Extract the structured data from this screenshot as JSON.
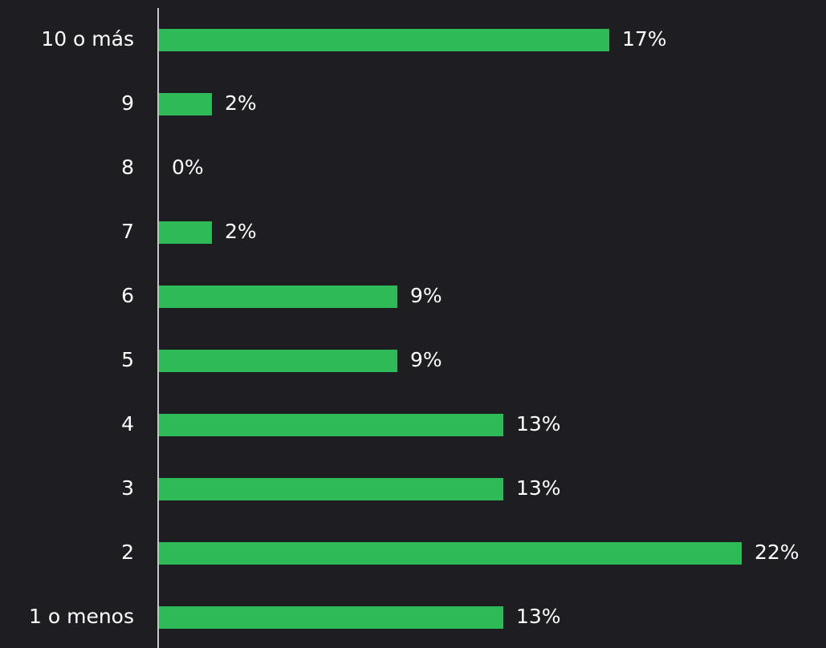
{
  "chart_data": {
    "type": "bar",
    "orientation": "horizontal",
    "categories": [
      "10 o más",
      "9",
      "8",
      "7",
      "6",
      "5",
      "4",
      "3",
      "2",
      "1 o menos"
    ],
    "values": [
      17,
      2,
      0,
      2,
      9,
      9,
      13,
      13,
      22,
      13
    ],
    "value_labels": [
      "17%",
      "2%",
      "0%",
      "2%",
      "9%",
      "9%",
      "13%",
      "13%",
      "22%",
      "13%"
    ],
    "color": "#2dba57"
  }
}
